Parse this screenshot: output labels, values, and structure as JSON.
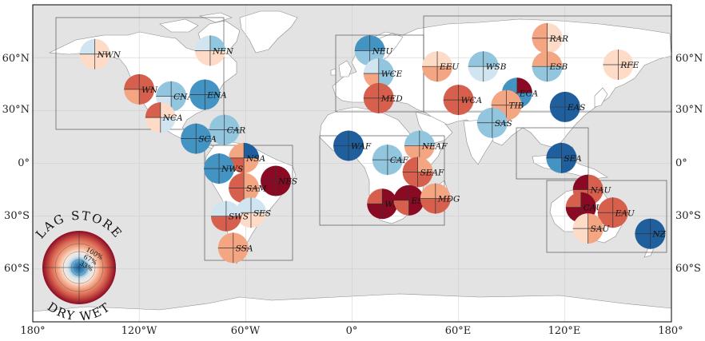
{
  "axes": {
    "x_ticks": [
      "180°",
      "120°W",
      "60°W",
      "0°",
      "60°E",
      "120°E",
      "180°"
    ],
    "y_ticks_left": [
      "60°N",
      "30°N",
      "0°",
      "30°S",
      "60°S"
    ],
    "y_ticks_right": [
      "60°N",
      "30°N",
      "0°",
      "30°S",
      "60°S"
    ]
  },
  "legend": {
    "top_word": "LAG STORE",
    "bottom_word": "DRY WET",
    "pct_labels": [
      "100%",
      "67%",
      "33%"
    ]
  },
  "colors": {
    "ocean": "#e3e3e3",
    "land": "#ffffff",
    "strong_red": "#8b0a23",
    "red": "#d6604d",
    "light_red": "#f4a582",
    "pale_red": "#fddbc7",
    "pale_blue": "#d1e5f0",
    "light_blue": "#92c5de",
    "blue": "#4393c3",
    "strong_blue": "#1f5f9e"
  },
  "regions": [
    {
      "code": "NWN",
      "lon": -145,
      "lat": 62,
      "q": [
        "pale_red",
        "pale_blue",
        "pale_red",
        "pale_red"
      ]
    },
    {
      "code": "NEN",
      "lon": -80,
      "lat": 64,
      "q": [
        "light_blue",
        "pale_blue",
        "pale_red",
        "pale_red"
      ]
    },
    {
      "code": "WNA",
      "lon": -120,
      "lat": 42,
      "q": [
        "red",
        "red",
        "light_red",
        "red"
      ]
    },
    {
      "code": "CNA",
      "lon": -102,
      "lat": 38,
      "q": [
        "light_blue",
        "light_blue",
        "pale_blue",
        "light_blue"
      ]
    },
    {
      "code": "ENA",
      "lon": -83,
      "lat": 39,
      "q": [
        "blue",
        "blue",
        "blue",
        "blue"
      ]
    },
    {
      "code": "NCA",
      "lon": -108,
      "lat": 26,
      "q": [
        "pale_red",
        "red",
        "pale_red",
        "pale_blue"
      ]
    },
    {
      "code": "CAR",
      "lon": -72,
      "lat": 19,
      "q": [
        "light_blue",
        "light_blue",
        "light_blue",
        "light_blue"
      ]
    },
    {
      "code": "SCA",
      "lon": -88,
      "lat": 14,
      "q": [
        "blue",
        "blue",
        "blue",
        "blue"
      ]
    },
    {
      "code": "NSA",
      "lon": -61,
      "lat": 3,
      "q": [
        "strong_blue",
        "light_red",
        "red",
        "light_red"
      ]
    },
    {
      "code": "NWS",
      "lon": -75,
      "lat": -3,
      "q": [
        "blue",
        "blue",
        "blue",
        "blue"
      ]
    },
    {
      "code": "NES",
      "lon": -43,
      "lat": -10,
      "q": [
        "strong_red",
        "strong_red",
        "strong_red",
        "strong_red"
      ]
    },
    {
      "code": "SAM",
      "lon": -61,
      "lat": -14,
      "q": [
        "light_red",
        "red",
        "red",
        "light_red"
      ]
    },
    {
      "code": "SES",
      "lon": -57,
      "lat": -28,
      "q": [
        "pale_blue",
        "pale_blue",
        "pale_red",
        "pale_red"
      ]
    },
    {
      "code": "SWS",
      "lon": -71,
      "lat": -30,
      "q": [
        "pale_blue",
        "pale_blue",
        "red",
        "red"
      ]
    },
    {
      "code": "SSA",
      "lon": -67,
      "lat": -48,
      "q": [
        "light_red",
        "light_red",
        "light_red",
        "light_red"
      ]
    },
    {
      "code": "NEU",
      "lon": 10,
      "lat": 64,
      "q": [
        "blue",
        "blue",
        "light_blue",
        "light_blue"
      ]
    },
    {
      "code": "WCE",
      "lon": 15,
      "lat": 51,
      "q": [
        "light_blue",
        "pale_blue",
        "light_red",
        "light_blue"
      ]
    },
    {
      "code": "MED",
      "lon": 15,
      "lat": 37,
      "q": [
        "red",
        "red",
        "red",
        "red"
      ]
    },
    {
      "code": "EEU",
      "lon": 48,
      "lat": 55,
      "q": [
        "pale_red",
        "pale_red",
        "light_red",
        "light_red"
      ]
    },
    {
      "code": "WSB",
      "lon": 74,
      "lat": 55,
      "q": [
        "light_blue",
        "light_blue",
        "pale_blue",
        "pale_blue"
      ]
    },
    {
      "code": "RAR",
      "lon": 110,
      "lat": 71,
      "q": [
        "pale_red",
        "light_red",
        "light_red",
        "pale_red"
      ]
    },
    {
      "code": "ESB",
      "lon": 110,
      "lat": 55,
      "q": [
        "light_red",
        "light_red",
        "light_blue",
        "light_blue"
      ]
    },
    {
      "code": "RFE",
      "lon": 150,
      "lat": 56,
      "q": [
        "pale_red",
        "pale_red",
        "pale_red",
        "pale_red"
      ]
    },
    {
      "code": "WCA",
      "lon": 60,
      "lat": 36,
      "q": [
        "red",
        "red",
        "red",
        "red"
      ]
    },
    {
      "code": "ECA",
      "lon": 93,
      "lat": 40,
      "q": [
        "strong_red",
        "blue",
        "red",
        "blue"
      ]
    },
    {
      "code": "TIB",
      "lon": 87,
      "lat": 33,
      "q": [
        "light_red",
        "light_red",
        "light_red",
        "light_red"
      ]
    },
    {
      "code": "EAS",
      "lon": 120,
      "lat": 32,
      "q": [
        "strong_blue",
        "strong_blue",
        "strong_blue",
        "strong_blue"
      ]
    },
    {
      "code": "SAS",
      "lon": 79,
      "lat": 23,
      "q": [
        "light_blue",
        "light_blue",
        "light_blue",
        "light_blue"
      ]
    },
    {
      "code": "WAF",
      "lon": -2,
      "lat": 10,
      "q": [
        "strong_blue",
        "strong_blue",
        "strong_blue",
        "strong_blue"
      ]
    },
    {
      "code": "NEAF",
      "lon": 38,
      "lat": 10,
      "q": [
        "light_blue",
        "light_blue",
        "light_red",
        "light_red"
      ]
    },
    {
      "code": "CAF",
      "lon": 20,
      "lat": 2,
      "q": [
        "light_blue",
        "light_blue",
        "light_blue",
        "light_blue"
      ]
    },
    {
      "code": "SEAF",
      "lon": 37,
      "lat": -5,
      "q": [
        "light_red",
        "red",
        "red",
        "red"
      ]
    },
    {
      "code": "WSAF",
      "lon": 17,
      "lat": -23,
      "q": [
        "strong_red",
        "red",
        "strong_red",
        "strong_red"
      ]
    },
    {
      "code": "ESAF",
      "lon": 32,
      "lat": -21,
      "q": [
        "strong_red",
        "strong_red",
        "red",
        "strong_red"
      ]
    },
    {
      "code": "MDG",
      "lon": 47,
      "lat": -20,
      "q": [
        "light_red",
        "light_red",
        "red",
        "red"
      ]
    },
    {
      "code": "SEA",
      "lon": 118,
      "lat": 3,
      "q": [
        "strong_blue",
        "strong_blue",
        "blue",
        "strong_blue"
      ]
    },
    {
      "code": "NAU",
      "lon": 133,
      "lat": -15,
      "q": [
        "red",
        "strong_red",
        "red",
        "red"
      ]
    },
    {
      "code": "CAU",
      "lon": 129,
      "lat": -25,
      "q": [
        "strong_red",
        "red",
        "strong_red",
        "strong_red"
      ]
    },
    {
      "code": "EAU",
      "lon": 147,
      "lat": -28,
      "q": [
        "red",
        "red",
        "red",
        "red"
      ]
    },
    {
      "code": "SAU",
      "lon": 133,
      "lat": -37,
      "q": [
        "light_red",
        "pale_red",
        "pale_red",
        "light_red"
      ]
    },
    {
      "code": "NZ",
      "lon": 168,
      "lat": -40,
      "q": [
        "strong_blue",
        "strong_blue",
        "strong_blue",
        "strong_blue"
      ]
    }
  ]
}
